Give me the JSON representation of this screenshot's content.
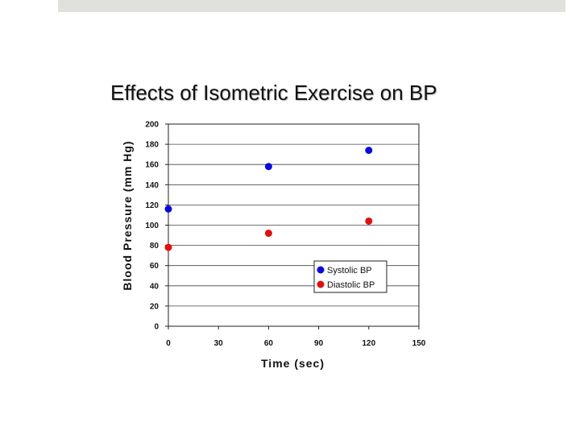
{
  "slide": {
    "band_color": "#e0e1dc"
  },
  "chart_data": {
    "type": "scatter",
    "title": "Effects of Isometric Exercise on BP",
    "xlabel": "Time (sec)",
    "ylabel": "Blood Pressure (mm Hg)",
    "xlim": [
      0,
      150
    ],
    "ylim": [
      0,
      200
    ],
    "x_ticks": [
      0,
      30,
      60,
      90,
      120,
      150
    ],
    "y_ticks": [
      0,
      20,
      40,
      60,
      80,
      100,
      120,
      140,
      160,
      180,
      200
    ],
    "grid": "horizontal",
    "legend_position": "lower-right",
    "series": [
      {
        "name": "Systolic BP",
        "color": "#0a0adc",
        "x": [
          0,
          60,
          120
        ],
        "y": [
          116,
          158,
          174
        ]
      },
      {
        "name": "Diastolic BP",
        "color": "#e01010",
        "x": [
          0,
          60,
          120
        ],
        "y": [
          78,
          92,
          104
        ]
      }
    ]
  }
}
